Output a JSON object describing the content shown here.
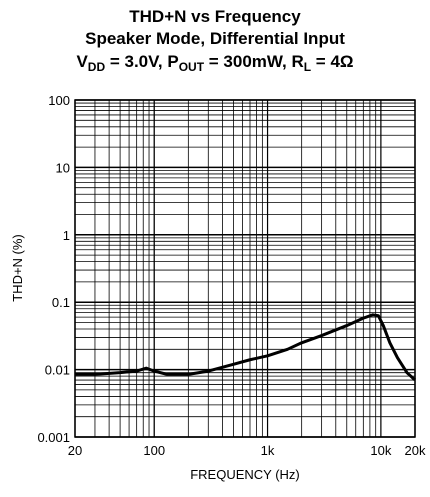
{
  "chart_data": {
    "type": "line",
    "title": [
      "THD+N vs Frequency",
      "Speaker Mode, Differential Input"
    ],
    "conditions": [
      {
        "text": "V"
      },
      {
        "text": "DD",
        "sub": true
      },
      {
        "text": " = 3.0V, P"
      },
      {
        "text": "OUT",
        "sub": true
      },
      {
        "text": " = 300mW, R"
      },
      {
        "text": "L",
        "sub": true
      },
      {
        "text": " = 4Ω"
      }
    ],
    "x_label": "FREQUENCY (Hz)",
    "y_label": "THD+N (%)",
    "x_scale": "log",
    "y_scale": "log",
    "grid": true,
    "minor_grid": true,
    "xlim": [
      20,
      20000
    ],
    "ylim": [
      0.001,
      100
    ],
    "xticks": [
      20,
      100,
      {
        "value": 1000,
        "label": "1k"
      },
      {
        "value": 10000,
        "label": "10k"
      },
      {
        "value": 20000,
        "label": "20k"
      }
    ],
    "yticks": [
      0.001,
      0.01,
      0.1,
      1,
      10,
      100
    ],
    "x": [
      20,
      30,
      50,
      70,
      85,
      100,
      130,
      200,
      300,
      500,
      700,
      1000,
      1500,
      2000,
      3000,
      5000,
      7000,
      8500,
      9500,
      10500,
      12000,
      14000,
      17000,
      20000
    ],
    "series": [
      {
        "name": "THD+N",
        "color": "#000000",
        "values": [
          0.0085,
          0.0085,
          0.009,
          0.0095,
          0.0105,
          0.0095,
          0.0085,
          0.0085,
          0.0095,
          0.012,
          0.014,
          0.016,
          0.02,
          0.025,
          0.032,
          0.045,
          0.058,
          0.065,
          0.063,
          0.045,
          0.025,
          0.015,
          0.009,
          0.007
        ]
      }
    ]
  }
}
